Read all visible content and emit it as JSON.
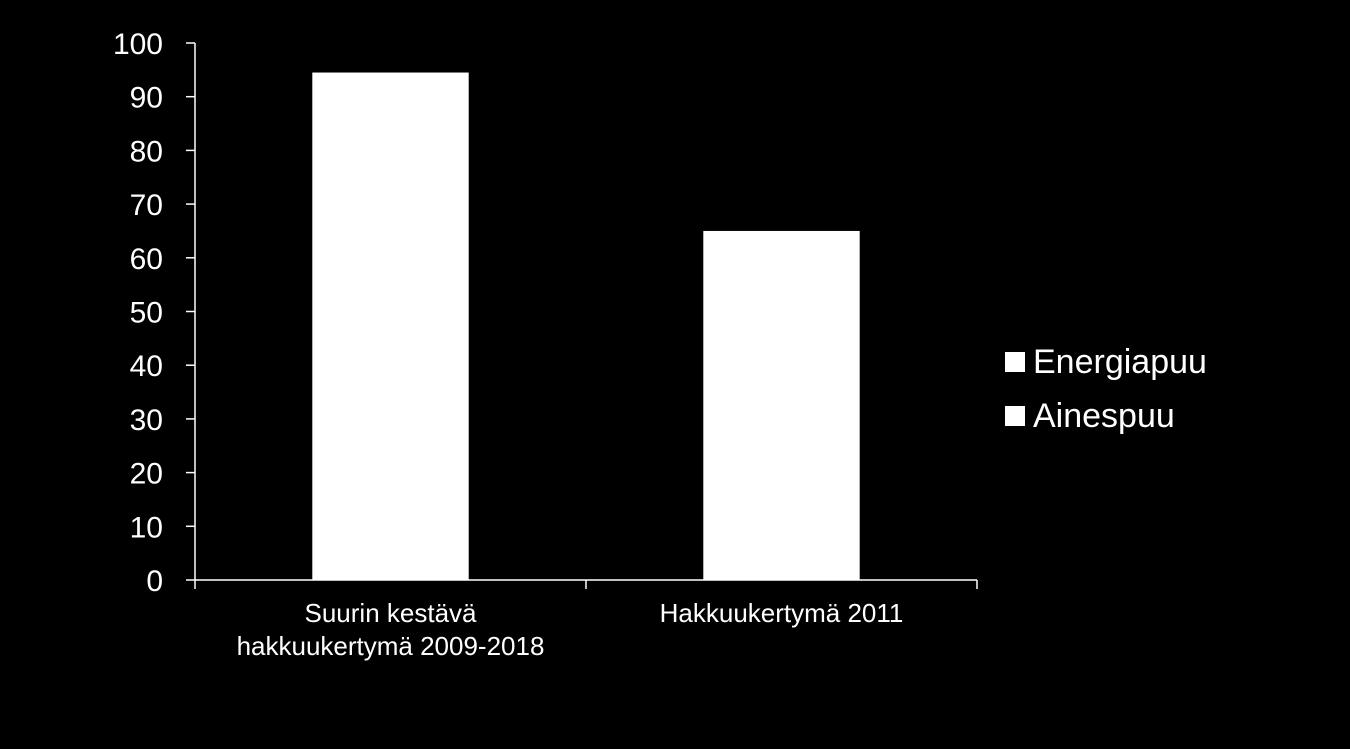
{
  "chart_data": {
    "type": "bar",
    "categories": [
      [
        "Suurin kestävä",
        "hakkuukertymä 2009-2018"
      ],
      [
        "Hakkuukertymä 2011"
      ]
    ],
    "series": [
      {
        "name": "Energiapuu",
        "values": [
          0,
          0
        ],
        "color": "#ffffff"
      },
      {
        "name": "Ainespuu",
        "values": [
          94.5,
          65
        ],
        "color": "#ffffff"
      }
    ],
    "stacked": true,
    "ylim": [
      0,
      100
    ],
    "yticks": [
      0,
      10,
      20,
      30,
      40,
      50,
      60,
      70,
      80,
      90,
      100
    ],
    "grid": false,
    "legend_position": "right",
    "background": "#000000",
    "axis_color": "#ffffff"
  }
}
